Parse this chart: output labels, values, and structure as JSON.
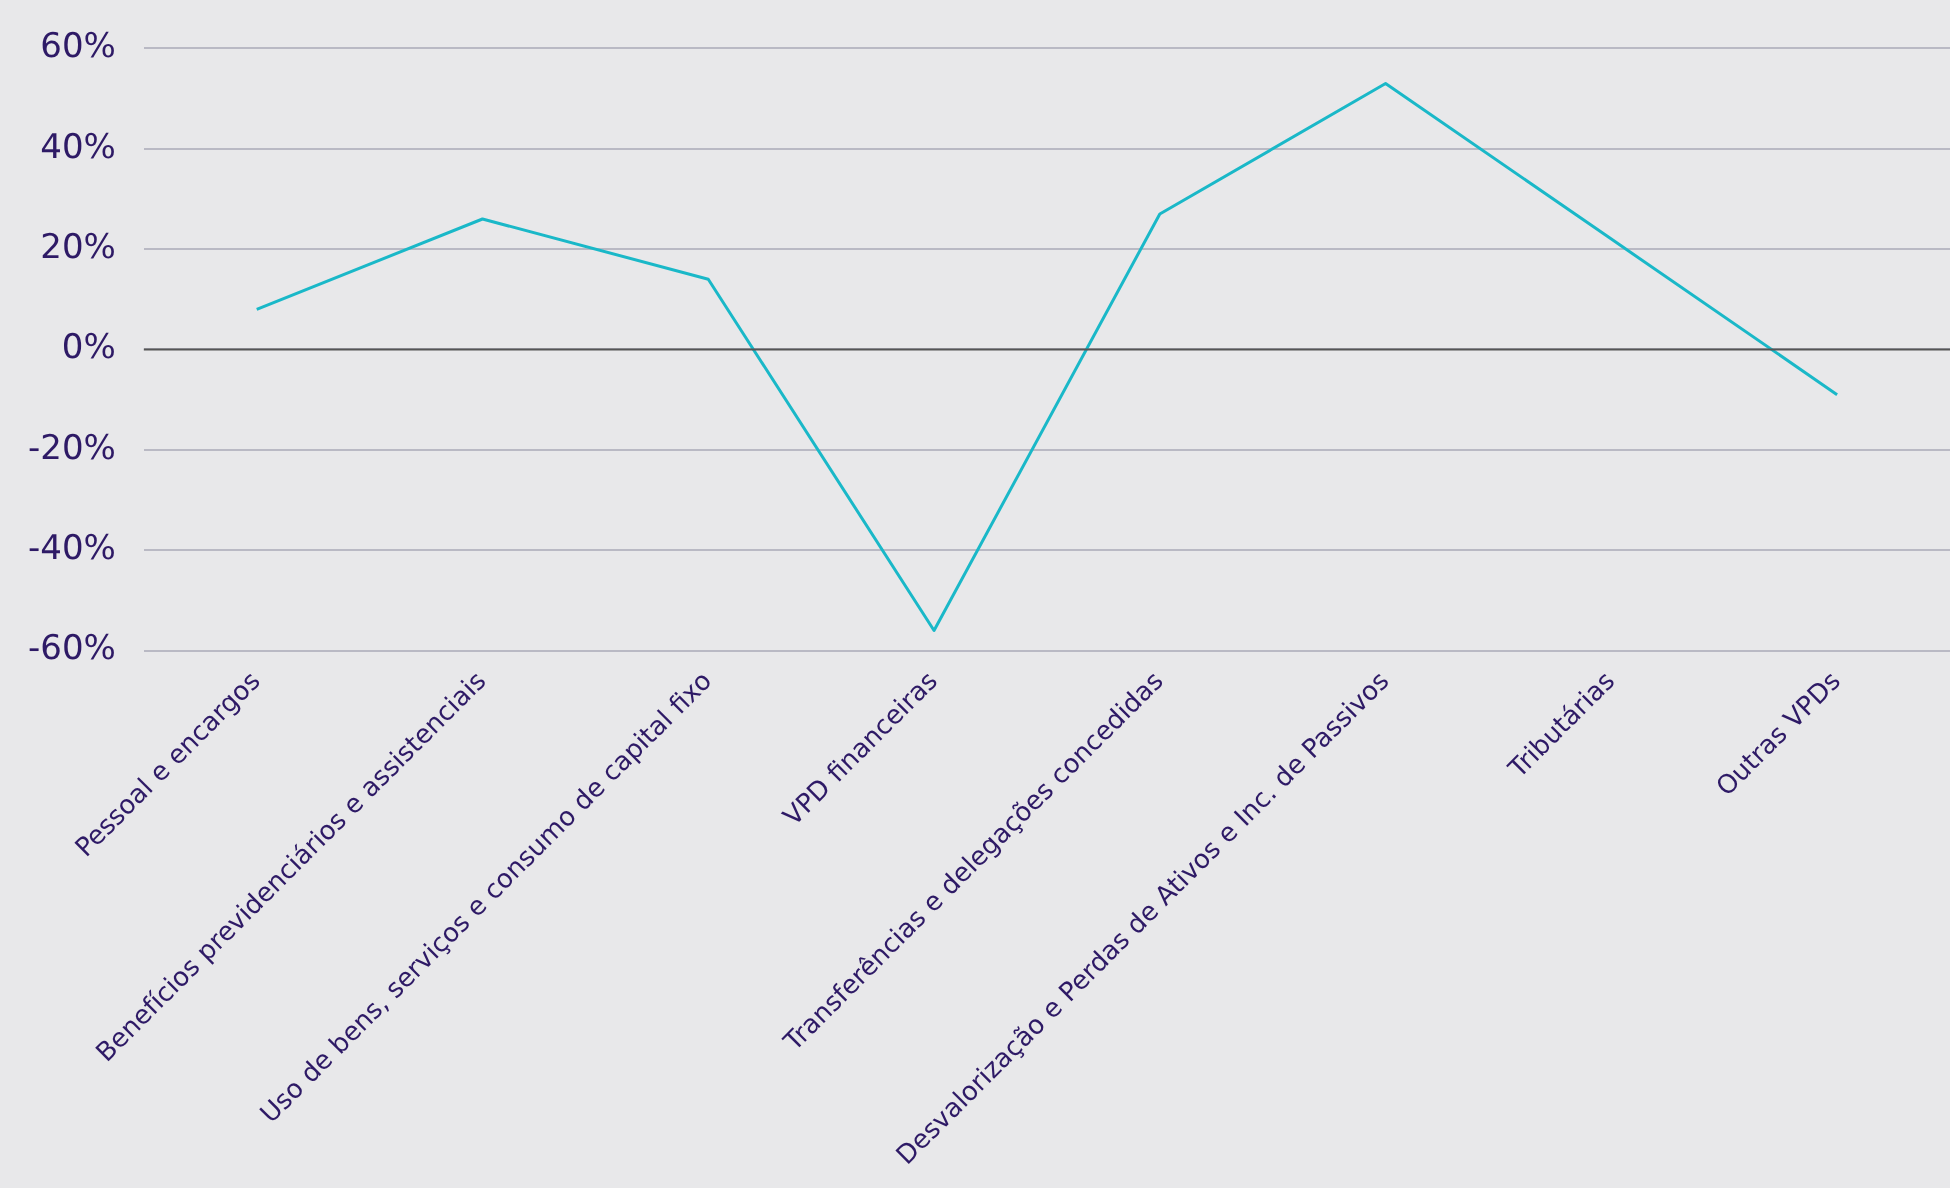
{
  "chart_data": {
    "type": "line",
    "categories": [
      "Pessoal e encargos",
      "Benefícios previdenciários e assistenciais",
      "Uso de bens, serviços e consumo de capital fixo",
      "VPD financeiras",
      "Transferências e delegações concedidas",
      "Desvalorização e Perdas de Ativos e Inc. de Passivos",
      "Tributárias",
      "Outras VPDs"
    ],
    "series": [
      {
        "color": "#1ab8c8",
        "values": [
          8,
          26,
          14,
          -56,
          27,
          53,
          22,
          -9
        ]
      }
    ],
    "ylim": [
      -60,
      60
    ],
    "yticks": [
      {
        "value": -60,
        "label": "-60%"
      },
      {
        "value": -40,
        "label": "-40%"
      },
      {
        "value": -20,
        "label": "-20%"
      },
      {
        "value": 0,
        "label": "0%"
      },
      {
        "value": 20,
        "label": "20%"
      },
      {
        "value": 40,
        "label": "40%"
      },
      {
        "value": 60,
        "label": "60%"
      }
    ],
    "grid": "y",
    "legend": false,
    "marker": "none",
    "line_style": "solid",
    "ref_lines": [
      {
        "axis": "y",
        "value": 0,
        "color": "#555555"
      }
    ]
  }
}
